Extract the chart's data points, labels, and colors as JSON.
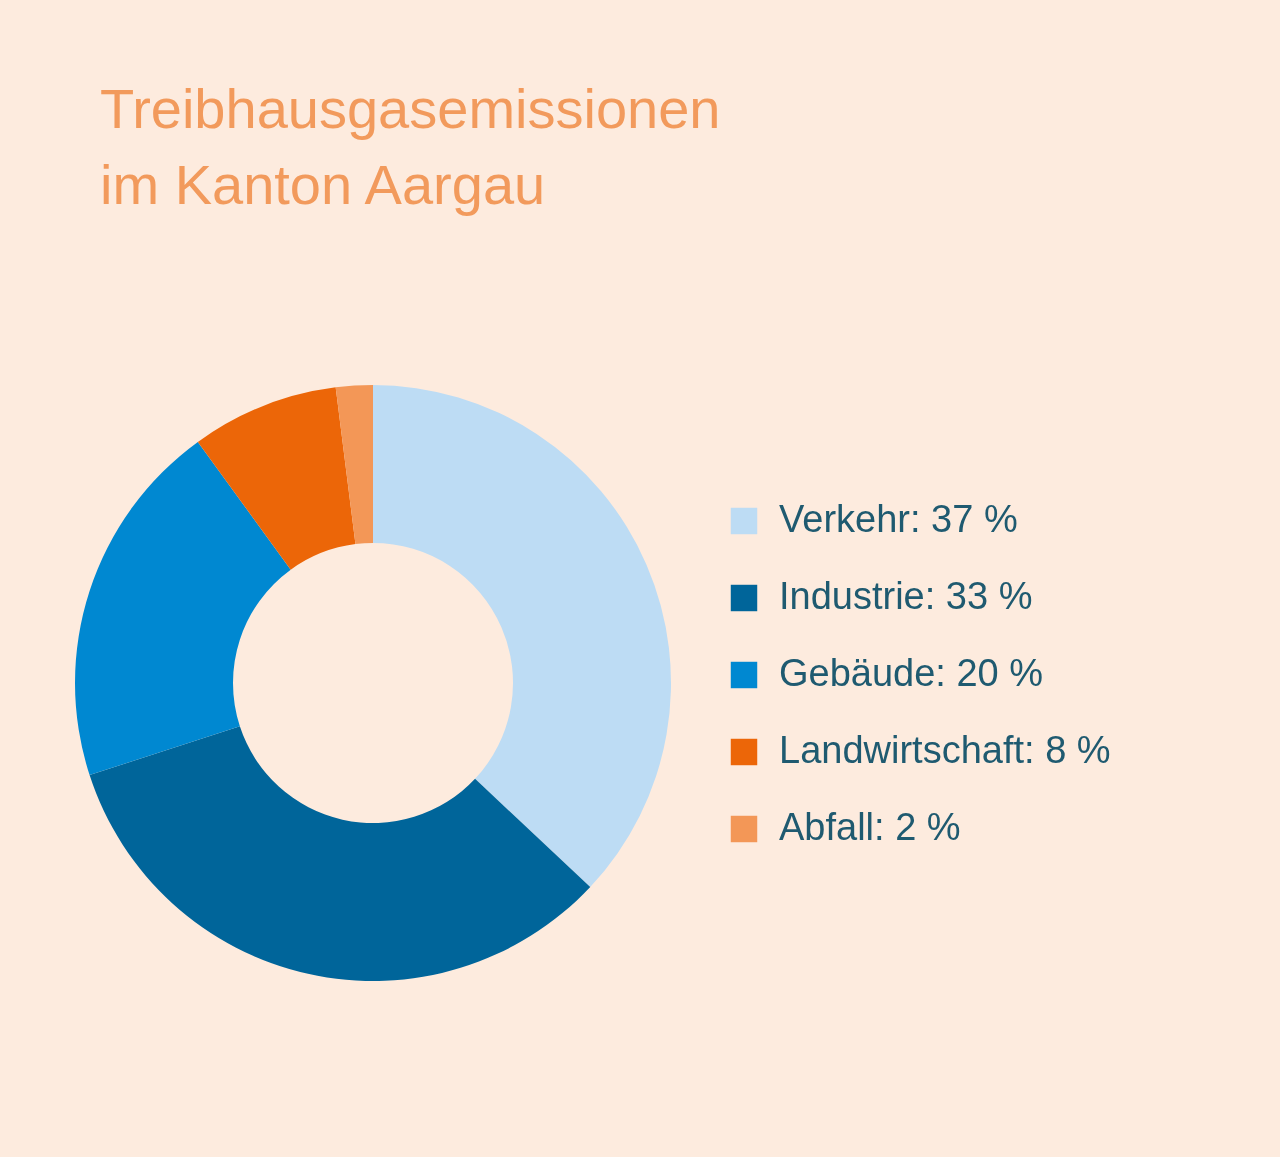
{
  "chart_data": {
    "type": "donut",
    "title": "Treibhausgasemissionen\nim Kanton Aargau",
    "categories": [
      "Verkehr",
      "Industrie",
      "Gebäude",
      "Landwirtschaft",
      "Abfall"
    ],
    "values": [
      37,
      33,
      20,
      8,
      2
    ],
    "value_labels": [
      "37 %",
      "33 %",
      "20 %",
      "8 %",
      "2 %"
    ],
    "colors": [
      "#bddcf4",
      "#00659a",
      "#0088d1",
      "#ec6608",
      "#f39757"
    ],
    "legend": "right"
  }
}
